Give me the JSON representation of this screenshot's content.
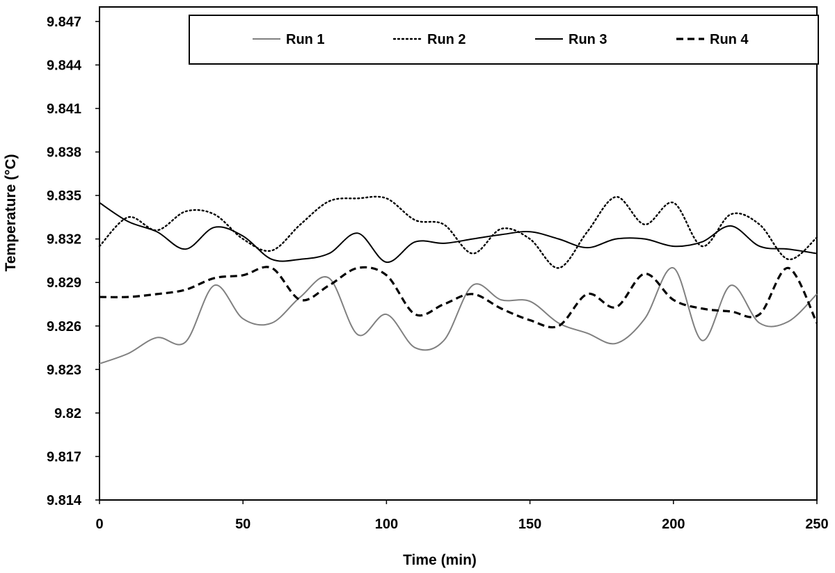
{
  "chart_data": {
    "type": "line",
    "title": "",
    "xlabel": "Time (min)",
    "ylabel": "Temperature (°C)",
    "xlim": [
      0,
      250
    ],
    "ylim": [
      9.814,
      9.848
    ],
    "xticks": [
      "0",
      "50",
      "100",
      "150",
      "200",
      "250"
    ],
    "yticks": [
      "9.814",
      "9.817",
      "9.82",
      "9.823",
      "9.826",
      "9.829",
      "9.832",
      "9.835",
      "9.838",
      "9.841",
      "9.844",
      "9.847"
    ],
    "grid": false,
    "legend_position": "top",
    "series": [
      {
        "name": "Run 1",
        "color": "#808080",
        "dash": "solid",
        "x": [
          0,
          10,
          20,
          30,
          40,
          50,
          60,
          70,
          80,
          90,
          100,
          110,
          120,
          130,
          140,
          150,
          160,
          170,
          180,
          190,
          200,
          210,
          220,
          230,
          240,
          250
        ],
        "values": [
          9.8234,
          9.8241,
          9.8252,
          9.8249,
          9.8288,
          9.8265,
          9.8262,
          9.828,
          9.8293,
          9.8254,
          9.8268,
          9.8245,
          9.825,
          9.8288,
          9.8278,
          9.8277,
          9.8262,
          9.8255,
          9.8248,
          9.8265,
          9.83,
          9.825,
          9.8288,
          9.8262,
          9.8263,
          9.8282
        ]
      },
      {
        "name": "Run 2",
        "color": "#000000",
        "dash": "dotted",
        "x": [
          0,
          10,
          20,
          30,
          40,
          50,
          60,
          70,
          80,
          90,
          100,
          110,
          120,
          130,
          140,
          150,
          160,
          170,
          180,
          190,
          200,
          210,
          220,
          230,
          240,
          250
        ],
        "values": [
          9.8315,
          9.8335,
          9.8326,
          9.8339,
          9.8337,
          9.832,
          9.8312,
          9.833,
          9.8346,
          9.8348,
          9.8348,
          9.8333,
          9.833,
          9.831,
          9.8327,
          9.832,
          9.83,
          9.8325,
          9.8349,
          9.833,
          9.8345,
          9.8315,
          9.8337,
          9.833,
          9.8306,
          9.8321
        ]
      },
      {
        "name": "Run 3",
        "color": "#000000",
        "dash": "solid",
        "x": [
          0,
          10,
          20,
          30,
          40,
          50,
          60,
          70,
          80,
          90,
          100,
          110,
          120,
          130,
          140,
          150,
          160,
          170,
          180,
          190,
          200,
          210,
          220,
          230,
          240,
          250
        ],
        "values": [
          9.8345,
          9.8332,
          9.8325,
          9.8313,
          9.8328,
          9.8322,
          9.8306,
          9.8306,
          9.831,
          9.8324,
          9.8304,
          9.8318,
          9.8317,
          9.832,
          9.8323,
          9.8325,
          9.832,
          9.8314,
          9.832,
          9.832,
          9.8315,
          9.8318,
          9.8329,
          9.8315,
          9.8313,
          9.831
        ]
      },
      {
        "name": "Run 4",
        "color": "#000000",
        "dash": "dashed",
        "x": [
          0,
          10,
          20,
          30,
          40,
          50,
          60,
          70,
          80,
          90,
          100,
          110,
          120,
          130,
          140,
          150,
          160,
          170,
          180,
          190,
          200,
          210,
          220,
          230,
          240,
          250
        ],
        "values": [
          9.828,
          9.828,
          9.8282,
          9.8285,
          9.8293,
          9.8295,
          9.83,
          9.8278,
          9.8288,
          9.83,
          9.8295,
          9.8268,
          9.8275,
          9.8282,
          9.8272,
          9.8264,
          9.826,
          9.8282,
          9.8273,
          9.8296,
          9.8278,
          9.8272,
          9.827,
          9.8268,
          9.83,
          9.8262
        ]
      }
    ]
  }
}
